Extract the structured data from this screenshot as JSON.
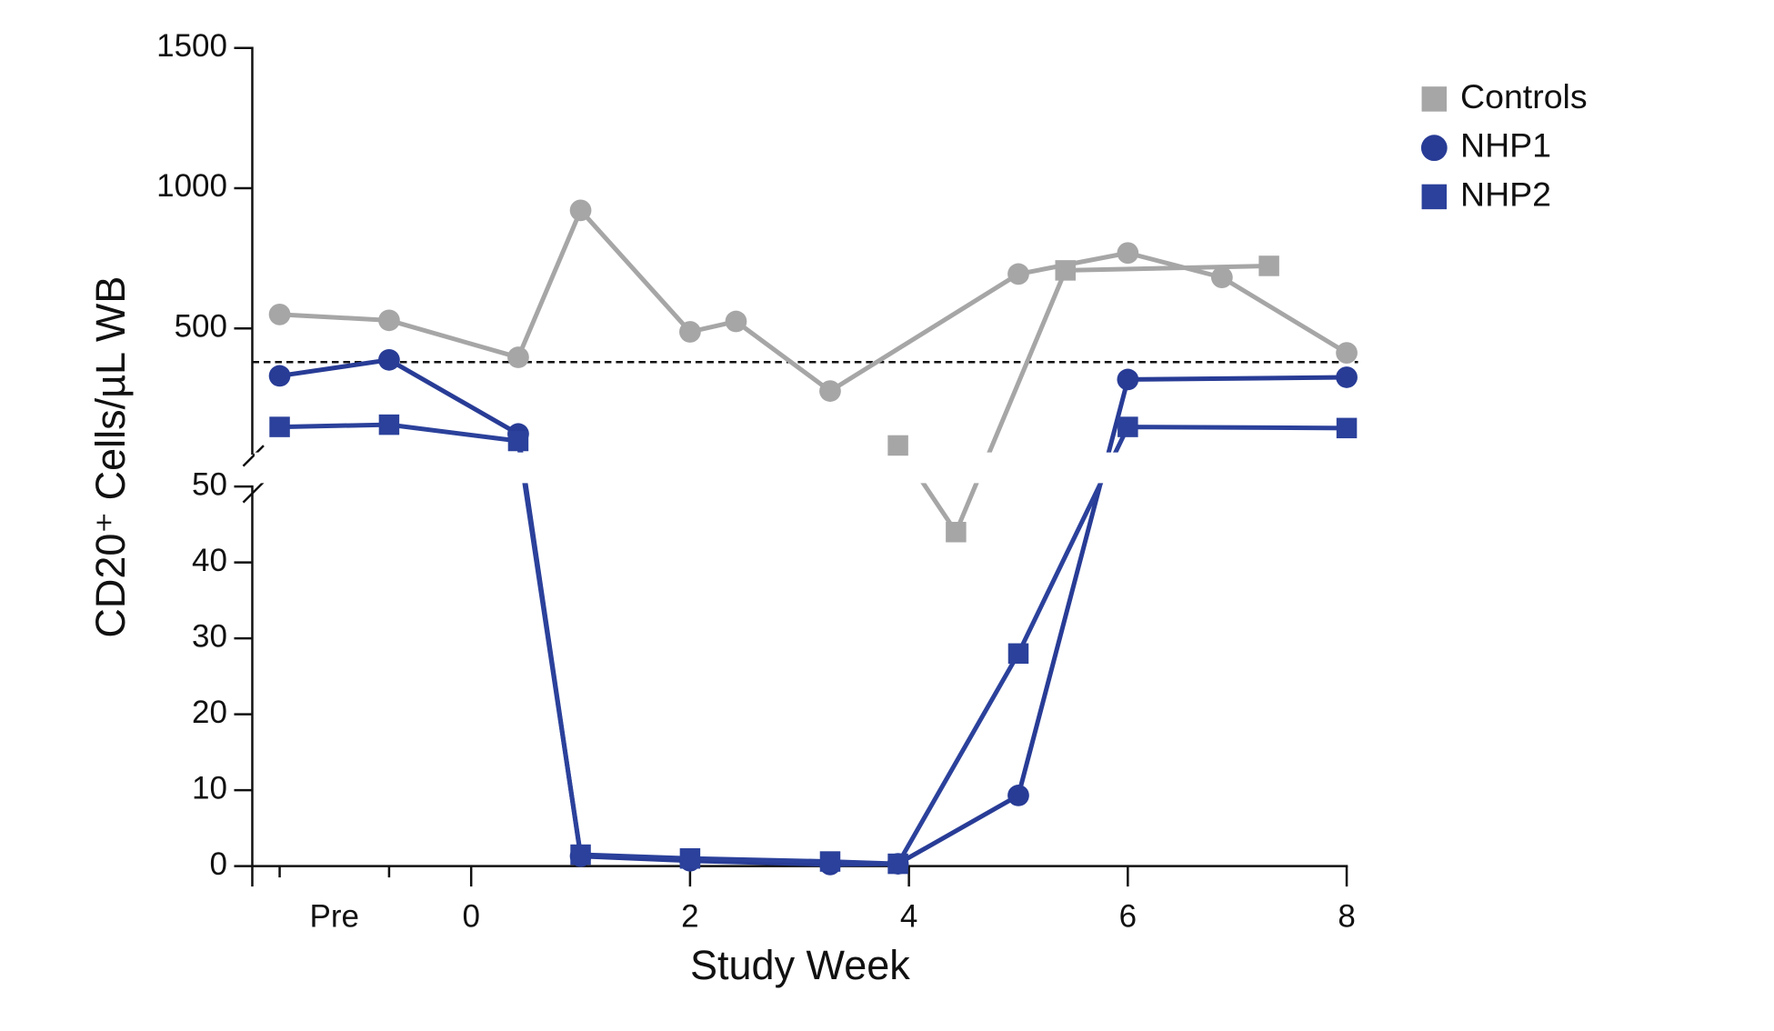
{
  "chart_data": {
    "type": "line",
    "xlabel": "Study Week",
    "ylabel": "CD20⁺ Cells/µL WB",
    "xlim": [
      -2,
      8
    ],
    "xticks": [
      {
        "value": -1.25,
        "label": "Pre"
      },
      0,
      2,
      4,
      6,
      8
    ],
    "minor_xticks": [
      -1.75,
      -0.75
    ],
    "y_segments": [
      {
        "ylim": [
          0,
          50
        ],
        "yticks": [
          0,
          10,
          20,
          30,
          40,
          50
        ]
      },
      {
        "ylim": [
          50,
          1500
        ],
        "yticks": [
          500,
          1000,
          1500
        ]
      }
    ],
    "reference_line": 380,
    "legend": "top-right",
    "series": [
      {
        "color": "#a6a6a6",
        "marker": "circle",
        "x": [
          -1.75,
          -0.75,
          0.43,
          1.0,
          2.0,
          2.42,
          3.28,
          5.0,
          6.0,
          6.86,
          8.0
        ],
        "values": [
          550,
          529,
          397,
          921,
          488,
          525,
          277,
          694,
          769,
          682,
          413
        ]
      },
      {
        "name": "Controls",
        "color": "#a6a6a6",
        "marker": "square",
        "x": [
          3.9,
          4.43,
          5.43,
          7.29
        ],
        "values": [
          83,
          44,
          707,
          723
        ]
      },
      {
        "name": "NHP1",
        "color": "#283c96",
        "marker": "circle",
        "x": [
          -1.75,
          -0.75,
          0.43,
          1.0,
          2.0,
          3.28,
          3.9,
          5.0,
          6.0,
          8.0
        ],
        "values": [
          331,
          388,
          124,
          1.3,
          0.7,
          0.2,
          0.3,
          9.3,
          318,
          326
        ]
      },
      {
        "name": "NHP2",
        "color": "#2b419b",
        "marker": "square",
        "x": [
          -1.75,
          -0.75,
          0.43,
          1.0,
          2.0,
          3.28,
          3.9,
          5.0,
          6.0,
          8.0
        ],
        "values": [
          149,
          157,
          99,
          1.5,
          1.0,
          0.6,
          0.3,
          28,
          149,
          145
        ]
      }
    ]
  }
}
